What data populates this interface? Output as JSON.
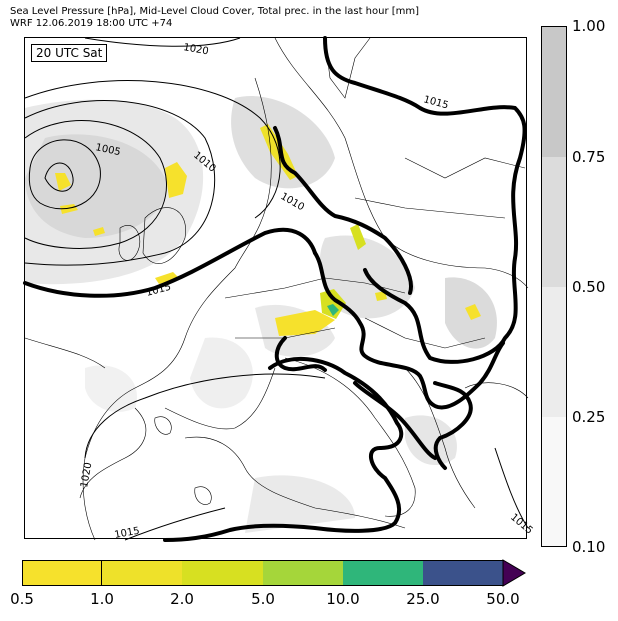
{
  "header": {
    "line1": "Sea Level Pressure [hPa], Mid-Level Cloud Cover, Total prec. in the last hour [mm]",
    "line2": "WRF 12.06.2019 18:00 UTC +74"
  },
  "map": {
    "time_badge": "20 UTC Sat",
    "isobar_labels": [
      "1020",
      "1015",
      "1005",
      "1010",
      "1010",
      "1015",
      "1020",
      "1015",
      "1015"
    ]
  },
  "cloud_legend": {
    "ticks": [
      "1.00",
      "0.75",
      "0.50",
      "0.25",
      "0.10"
    ],
    "colors": [
      "#c8c8c8",
      "#dcdcdc",
      "#ececec",
      "#f8f8f8"
    ]
  },
  "precip_legend": {
    "ticks": [
      "0.5",
      "1.0",
      "2.0",
      "5.0",
      "10.0",
      "25.0",
      "50.0"
    ],
    "colors": [
      "#f6e12c",
      "#eee12a",
      "#d7e021",
      "#a5d63a",
      "#2fb67a",
      "#3b528b",
      "#440154"
    ]
  }
}
